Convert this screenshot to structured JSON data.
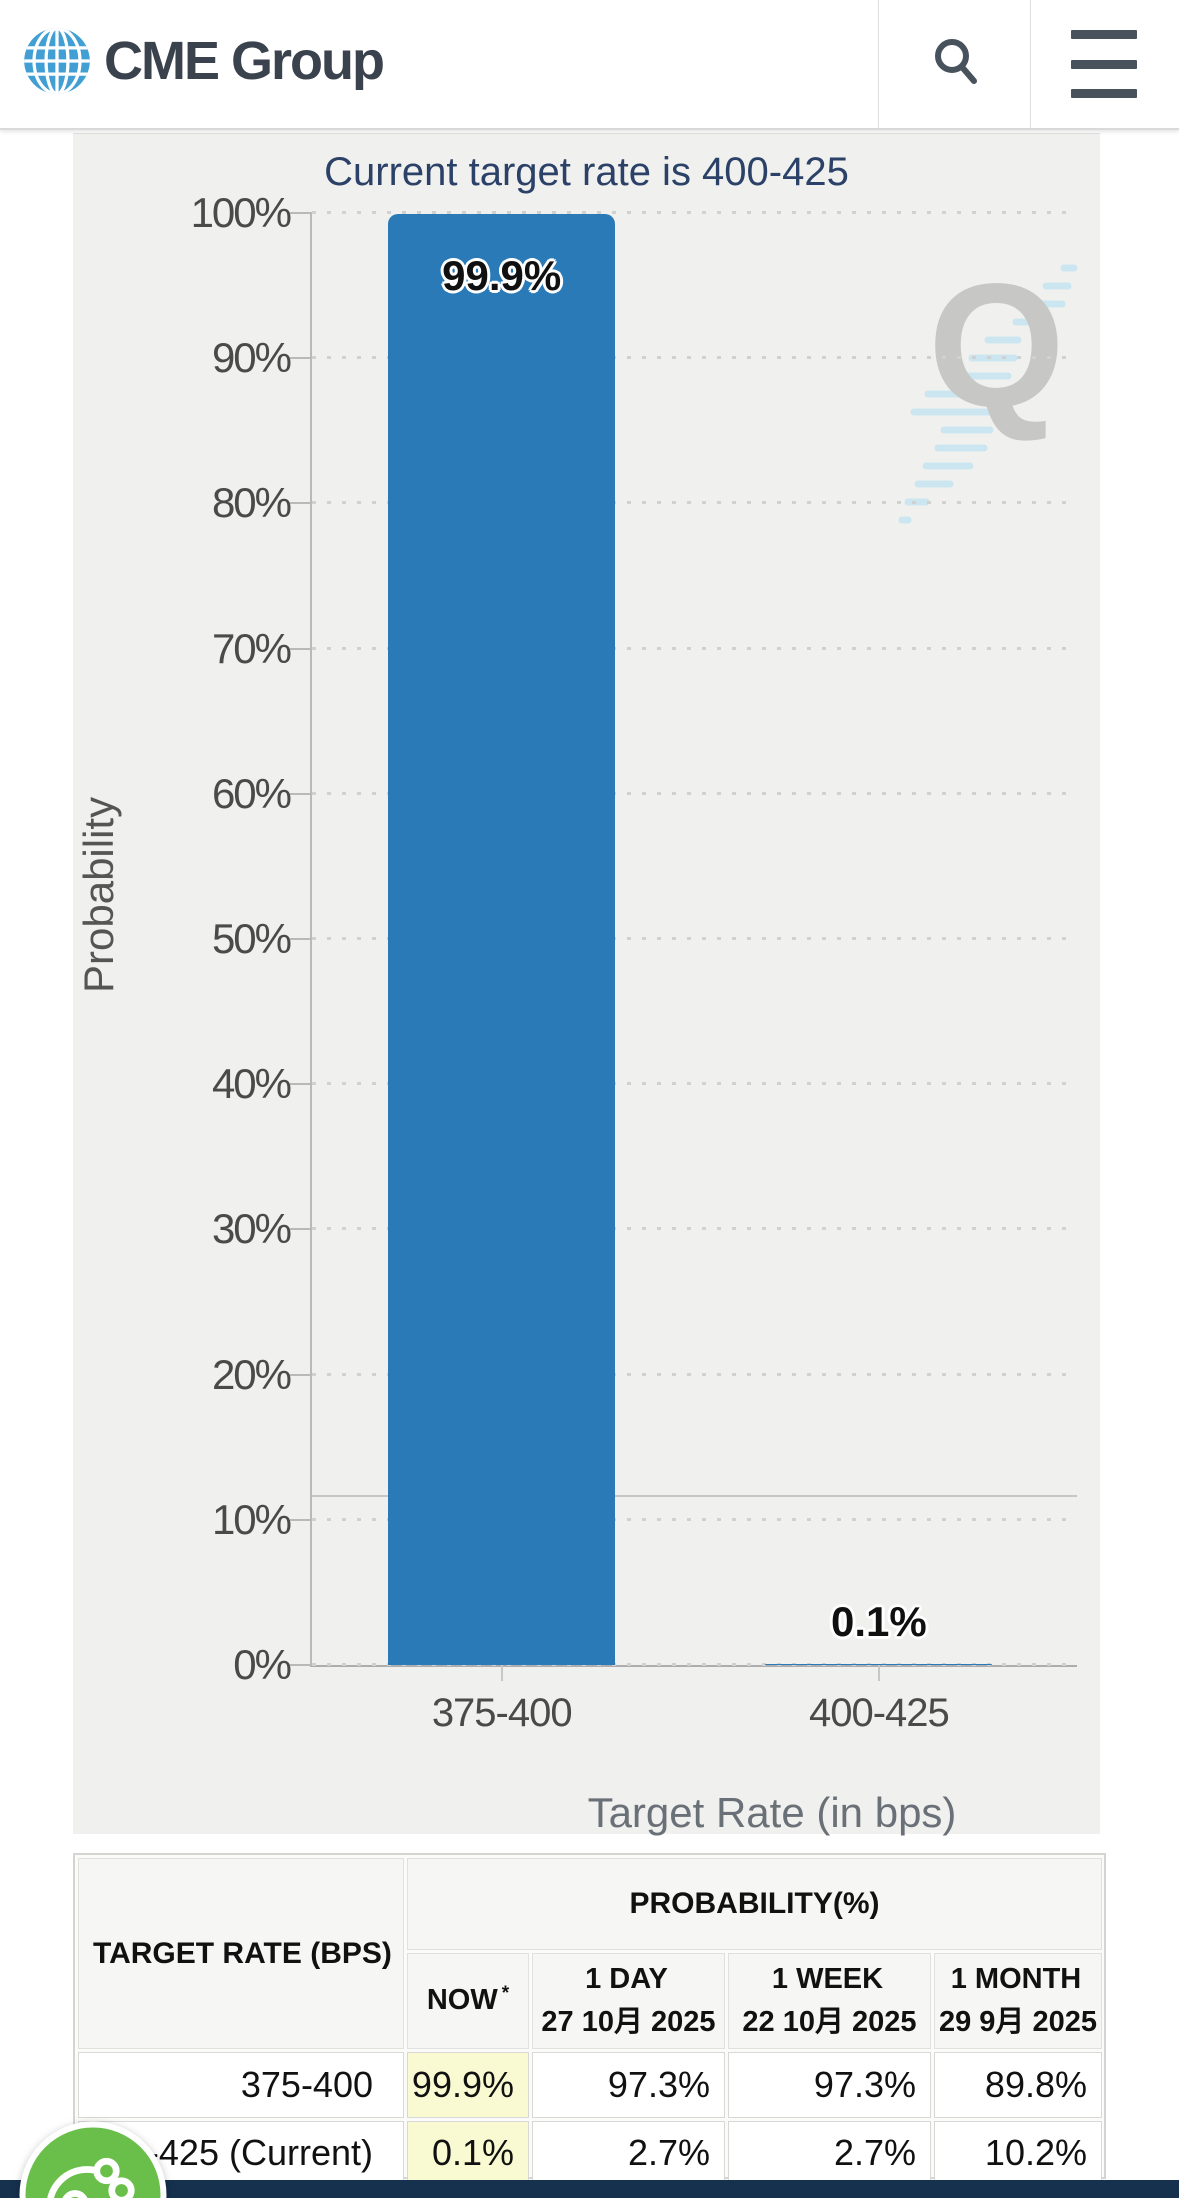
{
  "header": {
    "brand": "CME Group",
    "icons": {
      "logo": "globe-icon",
      "search": "search-icon",
      "menu": "hamburger-menu-icon"
    }
  },
  "chart_data": {
    "type": "bar",
    "title": "Current target rate is 400-425",
    "xlabel": "Target Rate (in bps)",
    "ylabel": "Probability",
    "categories": [
      "375-400",
      "400-425"
    ],
    "values": [
      99.9,
      0.1
    ],
    "value_labels": [
      "99.9%",
      "0.1%"
    ],
    "ytick_labels": [
      "0%",
      "10%",
      "20%",
      "30%",
      "40%",
      "50%",
      "60%",
      "70%",
      "80%",
      "90%",
      "100%"
    ],
    "ylim": [
      0,
      100
    ],
    "grid": "dotted horizontal",
    "legend": "none",
    "hline_pct": 11.6,
    "bar_color": "#2a7ab8",
    "title_color": "#2b4168",
    "watermark": "Q"
  },
  "table": {
    "corner_header": "TARGET RATE (BPS)",
    "group_header": "PROBABILITY(%)",
    "columns": [
      {
        "label": "NOW",
        "sup": "*",
        "date": ""
      },
      {
        "label": "1 DAY",
        "sup": "",
        "date": "27 10月 2025"
      },
      {
        "label": "1 WEEK",
        "sup": "",
        "date": "22 10月 2025"
      },
      {
        "label": "1 MONTH",
        "sup": "",
        "date": "29 9月 2025"
      }
    ],
    "rows": [
      {
        "rate": "375-400",
        "values": [
          "99.9%",
          "97.3%",
          "97.3%",
          "89.8%"
        ]
      },
      {
        "rate": "400-425 (Current)",
        "values": [
          "0.1%",
          "2.7%",
          "2.7%",
          "10.2%"
        ]
      }
    ],
    "highlight_color": "#fafad2"
  },
  "footer": {
    "bar_color": "#15314e"
  },
  "cookie_widget": {
    "icon": "cookie-icon",
    "color": "#6abf4a"
  }
}
